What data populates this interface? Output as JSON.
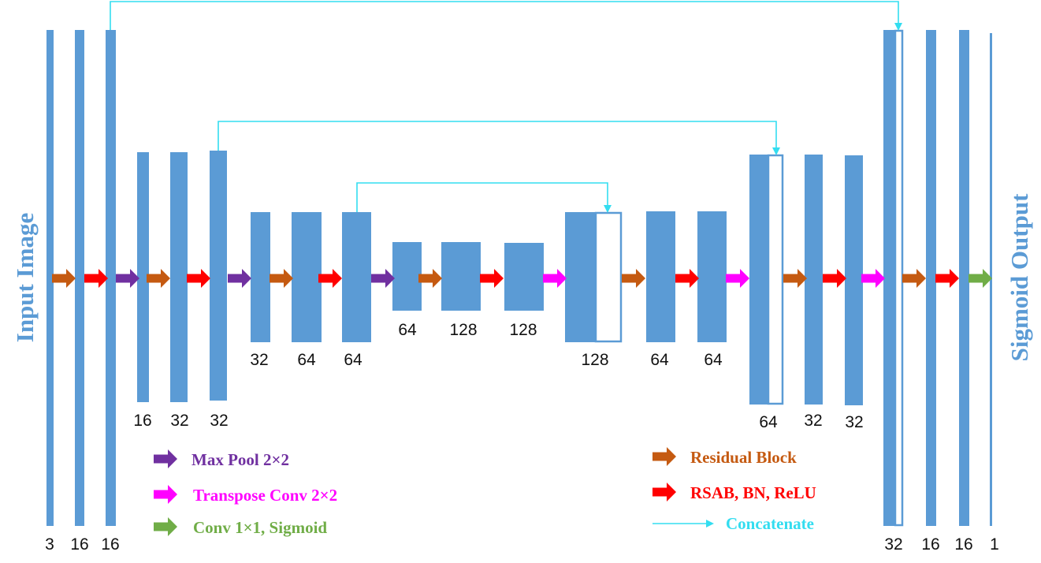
{
  "side_labels": {
    "input": "Input Image",
    "output": "Sigmoid Output"
  },
  "channel_labels": [
    "3",
    "16",
    "16",
    "16",
    "32",
    "32",
    "32",
    "64",
    "64",
    "64",
    "128",
    "128",
    "128",
    "64",
    "64",
    "64",
    "32",
    "32",
    "32",
    "16",
    "16",
    "1"
  ],
  "legend": {
    "max_pool": "Max Pool 2×2",
    "transpose_conv": "Transpose Conv 2×2",
    "conv_sigmoid": "Conv 1×1, Sigmoid",
    "residual": "Residual Block",
    "rsab": "RSAB, BN, ReLU",
    "concatenate": "Concatenate"
  },
  "colors": {
    "block": "#5b9bd5",
    "max_pool": "#7030a0",
    "transpose_conv": "#ff00ff",
    "conv_sigmoid": "#70ad47",
    "residual": "#c55a11",
    "rsab": "#ff0000",
    "concatenate": "#33ddf0"
  }
}
